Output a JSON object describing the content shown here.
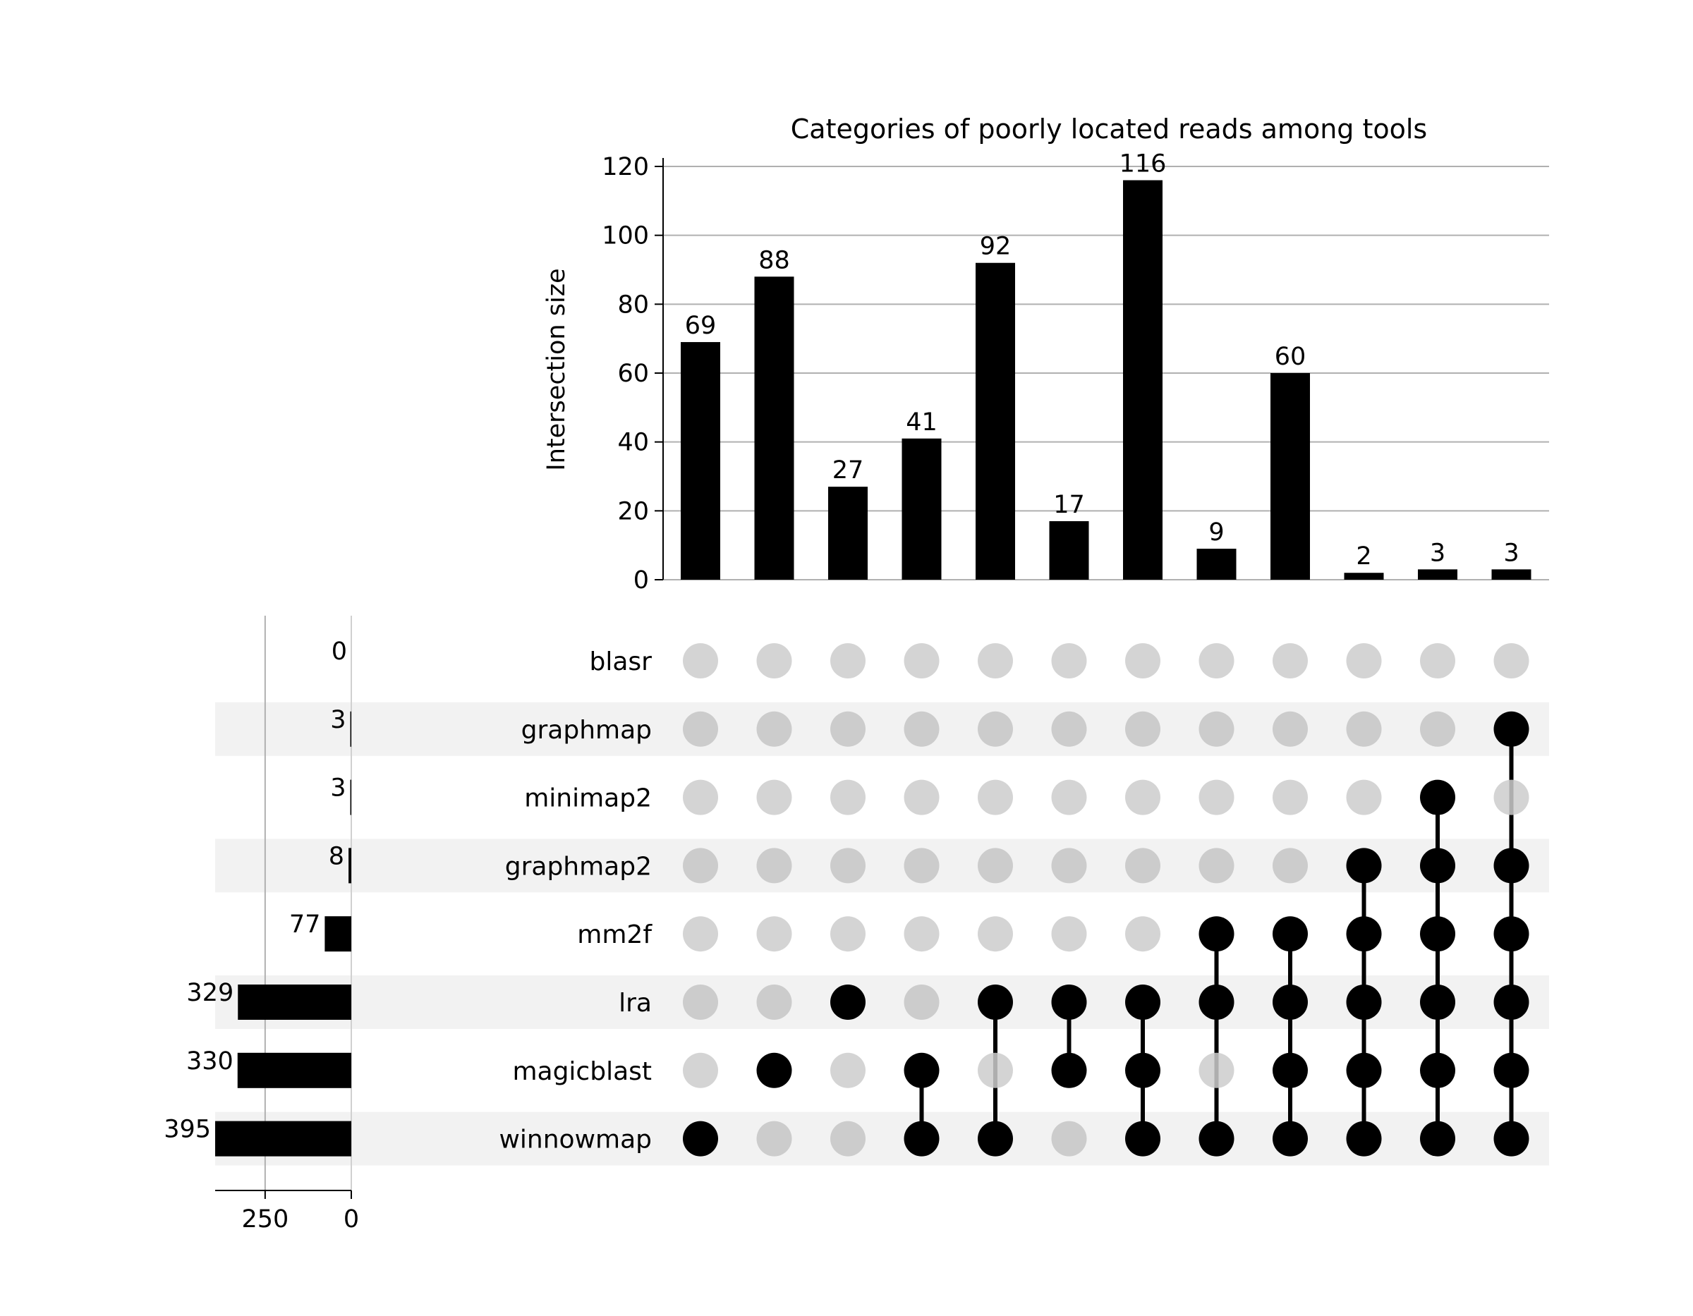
{
  "chart_data": {
    "type": "upset",
    "title": "Categories of poorly located reads among tools",
    "intersection_ylabel": "Intersection size",
    "intersection_ylim": [
      0,
      120
    ],
    "intersection_yticks": [
      0,
      20,
      40,
      60,
      80,
      100,
      120
    ],
    "grid": true,
    "sets": [
      "blasr",
      "graphmap",
      "minimap2",
      "graphmap2",
      "mm2f",
      "lra",
      "magicblast",
      "winnowmap"
    ],
    "set_sizes": [
      0,
      3,
      3,
      8,
      77,
      329,
      330,
      395
    ],
    "set_size_ticks": [
      250,
      0
    ],
    "set_size_xlim": [
      0,
      395
    ],
    "intersections": [
      {
        "members": [
          "winnowmap"
        ],
        "value": 69
      },
      {
        "members": [
          "magicblast"
        ],
        "value": 88
      },
      {
        "members": [
          "lra"
        ],
        "value": 27
      },
      {
        "members": [
          "magicblast",
          "winnowmap"
        ],
        "value": 41
      },
      {
        "members": [
          "lra",
          "winnowmap"
        ],
        "value": 92
      },
      {
        "members": [
          "lra",
          "magicblast"
        ],
        "value": 17
      },
      {
        "members": [
          "lra",
          "magicblast",
          "winnowmap"
        ],
        "value": 116
      },
      {
        "members": [
          "mm2f",
          "lra",
          "winnowmap"
        ],
        "value": 9
      },
      {
        "members": [
          "mm2f",
          "lra",
          "magicblast",
          "winnowmap"
        ],
        "value": 60
      },
      {
        "members": [
          "graphmap2",
          "mm2f",
          "lra",
          "magicblast",
          "winnowmap"
        ],
        "value": 2
      },
      {
        "members": [
          "minimap2",
          "graphmap2",
          "mm2f",
          "lra",
          "magicblast",
          "winnowmap"
        ],
        "value": 3
      },
      {
        "members": [
          "graphmap",
          "graphmap2",
          "mm2f",
          "lra",
          "magicblast",
          "winnowmap"
        ],
        "value": 3
      }
    ],
    "colors": {
      "bar": "#000000",
      "dot_active": "#000000",
      "dot_inactive": "#cccccc",
      "shade_row": "#f2f2f2",
      "grid": "#b0b0b0"
    }
  }
}
